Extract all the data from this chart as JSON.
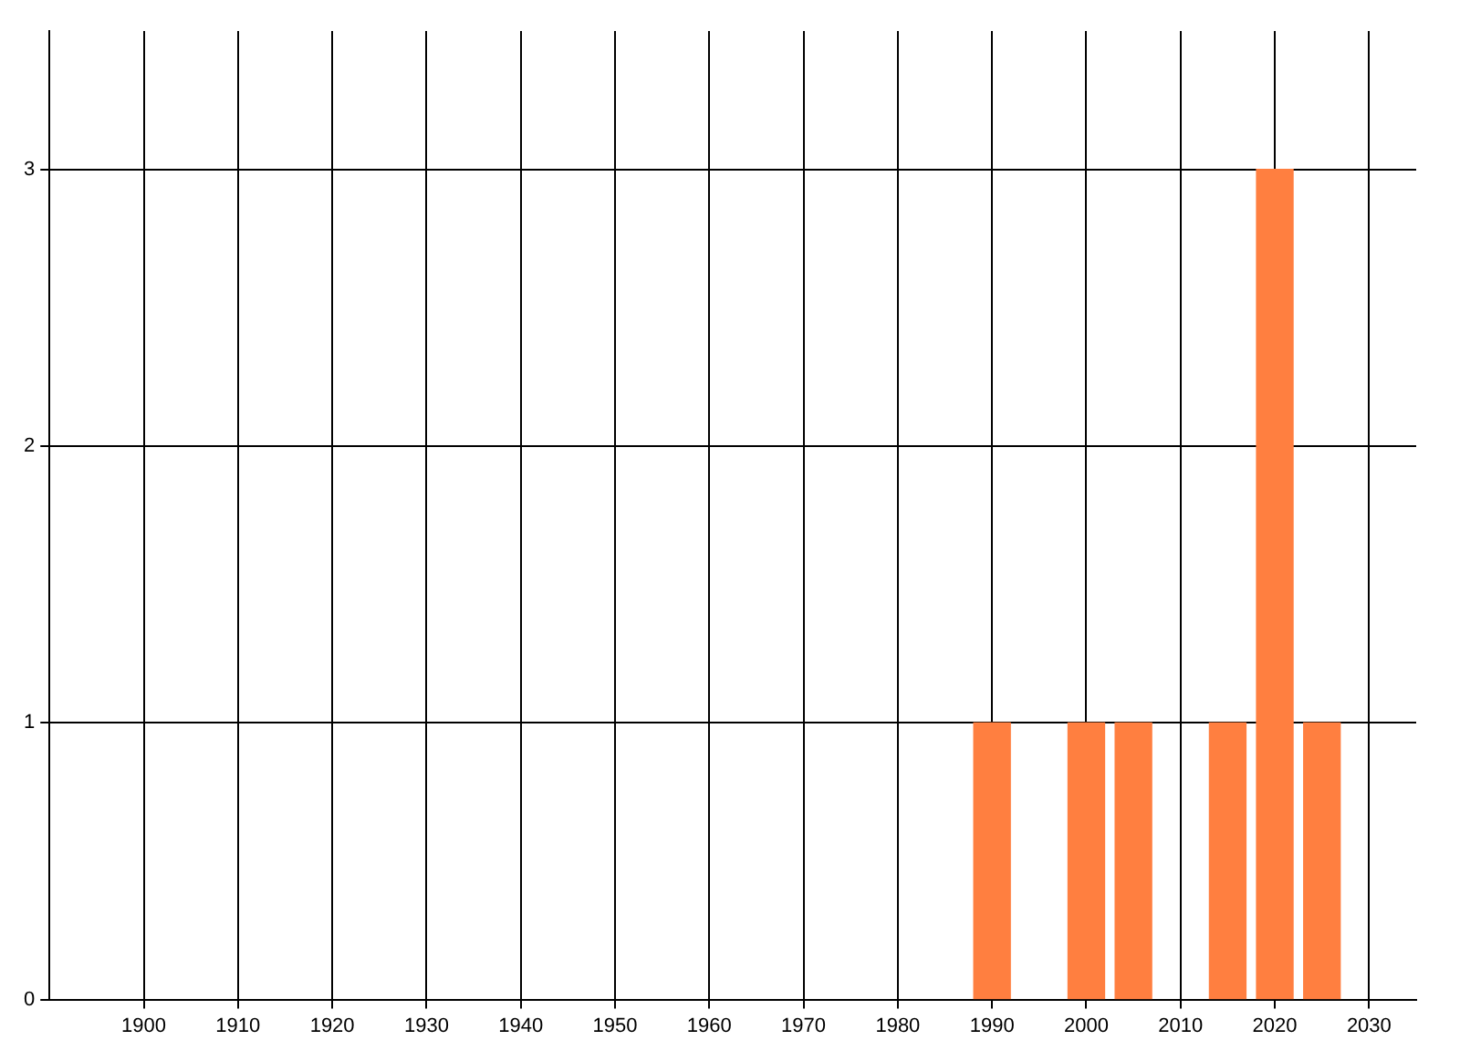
{
  "chart_data": {
    "type": "bar",
    "x": [
      1990,
      2000,
      2005,
      2015,
      2020,
      2025
    ],
    "values": [
      1,
      1,
      1,
      1,
      3,
      1
    ],
    "color": "#ff7f40",
    "xlim": [
      1890,
      2035
    ],
    "xticks": [
      1900,
      1910,
      1920,
      1930,
      1940,
      1950,
      1960,
      1970,
      1980,
      1990,
      2000,
      2010,
      2020,
      2030
    ],
    "ylim": [
      0,
      3.5
    ],
    "yticks": [
      0,
      1,
      2,
      3
    ],
    "grid": true,
    "legend": false
  }
}
